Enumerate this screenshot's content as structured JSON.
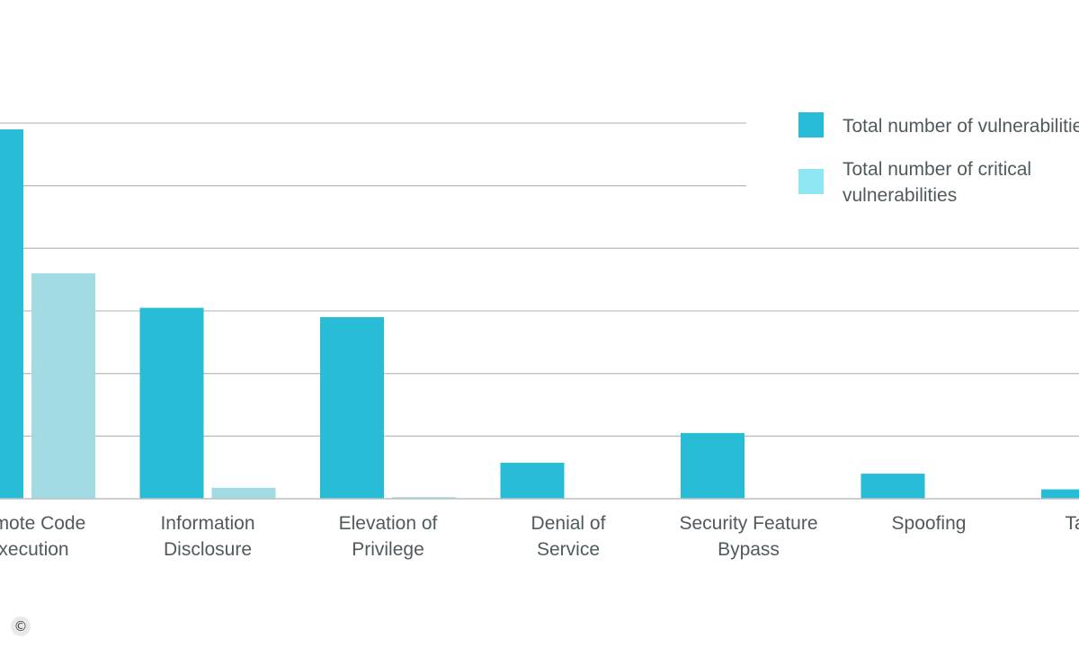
{
  "chart_data": {
    "type": "bar",
    "categories": [
      [
        "Remote Code",
        "Execution"
      ],
      [
        "Information",
        "Disclosure"
      ],
      [
        "Elevation of",
        "Privilege"
      ],
      [
        "Denial of",
        "Service"
      ],
      [
        "Security Feature",
        "Bypass"
      ],
      [
        "Spoofing"
      ],
      [
        "Tampering"
      ]
    ],
    "series": [
      {
        "name": "Total number of vulnerabilities",
        "color": "#29bcd6",
        "values": [
          118,
          61,
          58,
          11.5,
          21,
          8,
          3
        ]
      },
      {
        "name": "Total number of critical vulnerabilities",
        "color": "#a2dbe3",
        "values": [
          72,
          3.5,
          0.5,
          0,
          0,
          0,
          0
        ]
      }
    ],
    "ylim": [
      0,
      120
    ],
    "gridlines": [
      20,
      40,
      60,
      80,
      100,
      120
    ],
    "legend_position": "top-right",
    "grid": true
  },
  "copyright_symbol": "©"
}
